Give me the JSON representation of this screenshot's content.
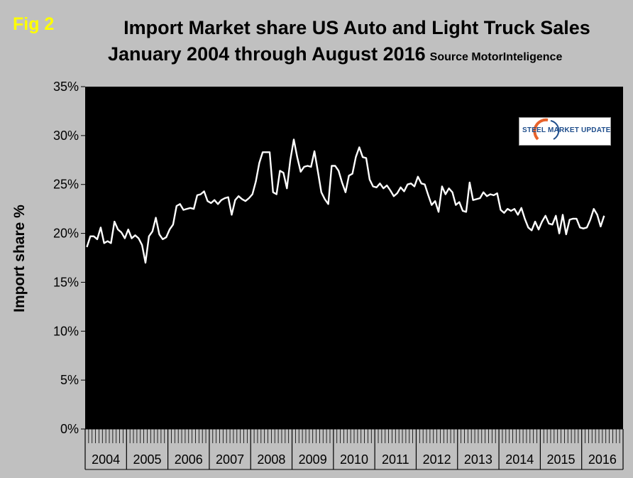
{
  "figure": {
    "fig_label": "Fig 2",
    "title_line1": "Import Market share US Auto and Light Truck Sales",
    "title_line2": "January 2004 through August 2016",
    "source": "Source MotorInteligence",
    "logo_text": "STEEL MARKET UPDATE"
  },
  "colors": {
    "background": "#c0c0c0",
    "plot_background": "#000000",
    "line": "#ffffff",
    "fig_label": "#ffff00"
  },
  "chart_data": {
    "type": "line",
    "title": "Import Market share US Auto and Light Truck Sales",
    "subtitle": "January 2004 through August 2016",
    "ylabel": "Import share %",
    "xlabel": "",
    "ylim": [
      0,
      35
    ],
    "yticks": [
      "0%",
      "5%",
      "10%",
      "15%",
      "20%",
      "25%",
      "30%",
      "35%"
    ],
    "ytick_values": [
      0,
      5,
      10,
      15,
      20,
      25,
      30,
      35
    ],
    "year_labels": [
      "2004",
      "2005",
      "2006",
      "2007",
      "2008",
      "2009",
      "2010",
      "2011",
      "2012",
      "2013",
      "2014",
      "2015",
      "2016"
    ],
    "x_start": "2004-01",
    "x_end": "2016-08",
    "grid": false,
    "series": [
      {
        "values": [
          18.6,
          19.7,
          19.7,
          19.4,
          20.6,
          19.0,
          19.2,
          19.0,
          21.2,
          20.4,
          20.1,
          19.5,
          20.4,
          19.5,
          19.8,
          19.5,
          18.8,
          17.0,
          19.7,
          20.2,
          21.6,
          19.9,
          19.4,
          19.6,
          20.4,
          20.9,
          22.8,
          23.0,
          22.4,
          22.5,
          22.6,
          22.5,
          23.9,
          24.0,
          24.3,
          23.3,
          23.1,
          23.4,
          23.0,
          23.4,
          23.6,
          23.7,
          21.9,
          23.4,
          23.8,
          23.5,
          23.3,
          23.6,
          24.0,
          25.3,
          27.2,
          28.3,
          28.3,
          28.3,
          24.2,
          24.0,
          26.4,
          26.2,
          24.6,
          27.5,
          29.6,
          27.8,
          26.3,
          26.8,
          26.9,
          26.8,
          28.4,
          26.3,
          24.2,
          23.5,
          23.0,
          26.9,
          26.9,
          26.4,
          25.2,
          24.2,
          25.9,
          26.1,
          27.8,
          28.8,
          27.8,
          27.7,
          25.5,
          24.8,
          24.7,
          25.1,
          24.6,
          24.9,
          24.4,
          23.8,
          24.1,
          24.7,
          24.3,
          25.0,
          25.1,
          24.8,
          25.8,
          25.1,
          25.0,
          23.9,
          22.9,
          23.3,
          22.2,
          24.8,
          24.0,
          24.6,
          24.2,
          22.9,
          23.2,
          22.3,
          22.2,
          25.2,
          23.4,
          23.5,
          23.6,
          24.2,
          23.8,
          24.0,
          23.9,
          24.1,
          22.4,
          22.1,
          22.5,
          22.3,
          22.5,
          21.9,
          22.6,
          21.5,
          20.6,
          20.3,
          21.2,
          20.4,
          21.2,
          21.8,
          21.0,
          20.9,
          21.8,
          20.0,
          21.9,
          19.9,
          21.4,
          21.5,
          21.5,
          20.6,
          20.5,
          20.6,
          21.4,
          22.5,
          21.9,
          20.7,
          21.8
        ]
      }
    ]
  }
}
